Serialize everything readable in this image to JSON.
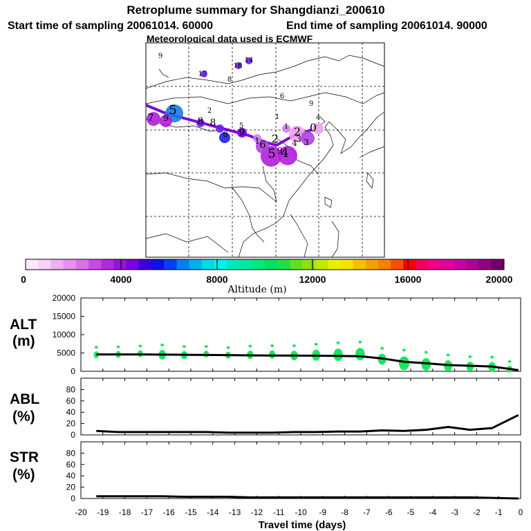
{
  "title": {
    "line1": "Retroplume summary for Shangdianzi_200610",
    "start": "Start time of sampling 20061014. 60000",
    "end": "End time of sampling 20061014. 90000",
    "met": "Meteorological data used is ECMWF"
  },
  "map": {
    "altitude_numbers": [
      "9",
      "17",
      "18",
      "14",
      "8",
      "6",
      "9",
      "2",
      "4",
      "0",
      "5",
      "7",
      "9",
      "8",
      "8",
      "6",
      "9",
      "5",
      "1",
      "2",
      "1",
      "3",
      "4",
      "6",
      "5",
      "9",
      "4",
      "1",
      "2",
      "3"
    ],
    "plume_colors": [
      "#1a7ae6",
      "#7b00e0",
      "#b020d8",
      "#f0a0f0",
      "#b040e0",
      "#d080f0",
      "#2020e0",
      "#6a20e8"
    ]
  },
  "colorbar": {
    "label": "Altitude (m)",
    "tick_labels": [
      "0",
      "4000",
      "8000",
      "12000",
      "16000",
      "20000"
    ],
    "colors": [
      "#fde8fd",
      "#f8d0f8",
      "#f0b0f0",
      "#e890ee",
      "#dc70ea",
      "#cc48e6",
      "#b428e2",
      "#9a10de",
      "#7a00dc",
      "#3c00d8",
      "#1010e8",
      "#0040f0",
      "#0080f0",
      "#00b0f0",
      "#00d8f0",
      "#00f0f0",
      "#00e8b8",
      "#00e8a0",
      "#00e880",
      "#00e060",
      "#20e040",
      "#60e020",
      "#90e010",
      "#c0e800",
      "#e8f000",
      "#f8e000",
      "#f8c000",
      "#f8a000",
      "#f88000",
      "#f85000",
      "#f80000",
      "#f00060",
      "#f0008a",
      "#e000a0",
      "#c800a8",
      "#b00096",
      "#900080",
      "#700068"
    ]
  },
  "y_labels": {
    "alt_line1": "ALT",
    "alt_line2": "(m)",
    "abl_line1": "ABL",
    "abl_line2": "(%)",
    "str_line1": "STR",
    "str_line2": "(%)"
  },
  "chart_data": [
    {
      "type": "line",
      "title": "",
      "ylabel": "ALT (m)",
      "xlim": [
        -20,
        0
      ],
      "ylim": [
        0,
        20000
      ],
      "yticks": [
        "0",
        "5000",
        "10000",
        "15000",
        "20000"
      ],
      "x": [
        -19.3,
        -18.3,
        -17.3,
        -16.3,
        -15.3,
        -14.3,
        -13.3,
        -12.3,
        -11.3,
        -10.3,
        -9.3,
        -8.3,
        -7.3,
        -6.3,
        -5.3,
        -4.3,
        -3.3,
        -2.3,
        -1.3,
        -0.1
      ],
      "median": [
        4600,
        4600,
        4600,
        4550,
        4500,
        4450,
        4400,
        4350,
        4300,
        4300,
        4250,
        4200,
        4100,
        3500,
        2600,
        2200,
        1700,
        1500,
        1300,
        300
      ],
      "clusters": {
        "color": "#19e85f",
        "x": [
          -19.3,
          -18.3,
          -17.3,
          -16.3,
          -15.3,
          -14.3,
          -13.3,
          -12.3,
          -11.3,
          -10.3,
          -9.3,
          -8.3,
          -7.3,
          -6.3,
          -5.3,
          -4.3,
          -3.3,
          -2.3,
          -1.3,
          -0.5
        ],
        "y": [
          4500,
          4600,
          4800,
          4500,
          4400,
          4700,
          4400,
          4500,
          4600,
          4300,
          4400,
          4500,
          4700,
          3300,
          2200,
          1900,
          1500,
          1300,
          1200,
          600
        ],
        "size": [
          5,
          5,
          5,
          7,
          6,
          5,
          5,
          6,
          6,
          7,
          8,
          9,
          9,
          8,
          10,
          9,
          8,
          7,
          7,
          5
        ]
      }
    },
    {
      "type": "line",
      "ylabel": "ABL (%)",
      "xlim": [
        -20,
        0
      ],
      "ylim": [
        0,
        100
      ],
      "yticks": [
        "0",
        "20",
        "40",
        "60",
        "80"
      ],
      "x": [
        -19.3,
        -18.3,
        -17.3,
        -16.3,
        -15.3,
        -14.3,
        -13.3,
        -12.3,
        -11.3,
        -10.3,
        -9.3,
        -8.3,
        -7.3,
        -6.3,
        -5.3,
        -4.3,
        -3.3,
        -2.3,
        -1.3,
        -0.1
      ],
      "y": [
        7,
        5,
        5,
        5,
        5,
        5,
        4,
        4,
        4,
        5,
        5,
        6,
        6,
        8,
        7,
        9,
        14,
        9,
        12,
        35
      ]
    },
    {
      "type": "line",
      "ylabel": "STR (%)",
      "xlim": [
        -20,
        0
      ],
      "ylim": [
        0,
        100
      ],
      "yticks": [
        "0",
        "20",
        "40",
        "60",
        "80"
      ],
      "x": [
        -19.3,
        -18.3,
        -17.3,
        -16.3,
        -15.3,
        -14.3,
        -13.3,
        -12.3,
        -11.3,
        -10.3,
        -9.3,
        -8.3,
        -7.3,
        -6.3,
        -5.3,
        -4.3,
        -3.3,
        -2.3,
        -1.3,
        -0.1
      ],
      "y": [
        4,
        4,
        4,
        4,
        3,
        3,
        3,
        2,
        2,
        2,
        2,
        2,
        2,
        2,
        2,
        2,
        2,
        2,
        1,
        0
      ]
    }
  ],
  "x_axis": {
    "label": "Travel time (days)",
    "ticks": [
      "-20",
      "-19",
      "-18",
      "-17",
      "-16",
      "-15",
      "-14",
      "-13",
      "-12",
      "-11",
      "-10",
      "-9",
      "-8",
      "-7",
      "-6",
      "-5",
      "-4",
      "-3",
      "-2",
      "-1",
      "0"
    ]
  }
}
